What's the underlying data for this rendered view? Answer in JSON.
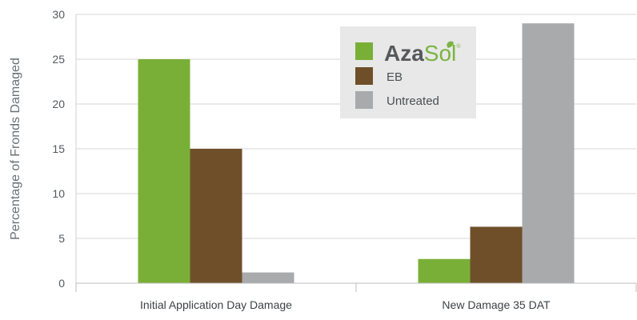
{
  "chart_data": {
    "type": "bar",
    "ylabel": "Percentage of Fronds Damaged",
    "ylim": [
      0,
      30
    ],
    "yticks": [
      0,
      5,
      10,
      15,
      20,
      25,
      30
    ],
    "categories": [
      "Initial Application Day Damage",
      "New Damage 35 DAT"
    ],
    "grid": true,
    "legend_position": "top-right",
    "series": [
      {
        "name": "AzaSol",
        "color": "#7aaf37",
        "values": [
          25,
          2.7
        ]
      },
      {
        "name": "EB",
        "color": "#6f4f2a",
        "values": [
          15,
          6.3
        ]
      },
      {
        "name": "Untreated",
        "color": "#a9aaac",
        "values": [
          1.2,
          29
        ]
      }
    ]
  },
  "legend": {
    "brand_main": "Aza",
    "brand_accent": "Sol",
    "trademark": "®",
    "eb": "EB",
    "untreated": "Untreated"
  }
}
